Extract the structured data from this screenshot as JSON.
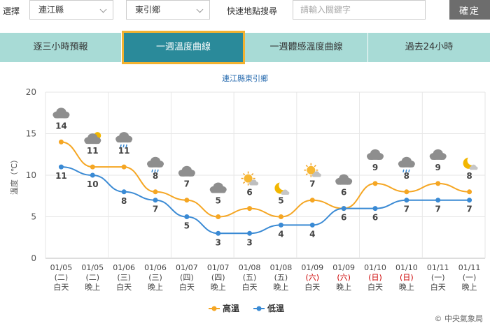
{
  "search": {
    "select_label": "選擇",
    "county": "連江縣",
    "town": "東引鄉",
    "quick_label": "快速地點搜尋",
    "placeholder": "請輸入關鍵字",
    "confirm": "確定"
  },
  "tabs": [
    {
      "label": "逐三小時預報",
      "active": false
    },
    {
      "label": "一週溫度曲線",
      "active": true
    },
    {
      "label": "一週體感溫度曲線",
      "active": false
    },
    {
      "label": "過去24小時",
      "active": false
    }
  ],
  "colors": {
    "high": "#f5a623",
    "low": "#3a8ad4",
    "weekend": "#cc0000"
  },
  "chart_data": {
    "type": "line",
    "title": "連江縣東引鄉",
    "ylabel": "溫度（℃）",
    "ylim": [
      0,
      20
    ],
    "yticks": [
      "0",
      "5",
      "10",
      "15",
      "20"
    ],
    "grid": true,
    "legend_position": "bottom-center",
    "categories": [
      {
        "date": "01/05",
        "weekday": "(二)",
        "period": "白天",
        "weekend": false
      },
      {
        "date": "01/05",
        "weekday": "(二)",
        "period": "晚上",
        "weekend": false
      },
      {
        "date": "01/06",
        "weekday": "(三)",
        "period": "白天",
        "weekend": false
      },
      {
        "date": "01/06",
        "weekday": "(三)",
        "period": "晚上",
        "weekend": false
      },
      {
        "date": "01/07",
        "weekday": "(四)",
        "period": "白天",
        "weekend": false
      },
      {
        "date": "01/07",
        "weekday": "(四)",
        "period": "晚上",
        "weekend": false
      },
      {
        "date": "01/08",
        "weekday": "(五)",
        "period": "白天",
        "weekend": false
      },
      {
        "date": "01/08",
        "weekday": "(五)",
        "period": "晚上",
        "weekend": false
      },
      {
        "date": "01/09",
        "weekday": "(六)",
        "period": "白天",
        "weekend": true
      },
      {
        "date": "01/09",
        "weekday": "(六)",
        "period": "晚上",
        "weekend": true
      },
      {
        "date": "01/10",
        "weekday": "(日)",
        "period": "白天",
        "weekend": true
      },
      {
        "date": "01/10",
        "weekday": "(日)",
        "period": "晚上",
        "weekend": true
      },
      {
        "date": "01/11",
        "weekday": "(一)",
        "period": "白天",
        "weekend": false
      },
      {
        "date": "01/11",
        "weekday": "(一)",
        "period": "晚上",
        "weekend": false
      }
    ],
    "series": [
      {
        "name": "高溫",
        "values": [
          14,
          11,
          11,
          8,
          7,
          5,
          6,
          5,
          7,
          6,
          9,
          8,
          9,
          8
        ]
      },
      {
        "name": "低溫",
        "values": [
          11,
          10,
          8,
          7,
          5,
          3,
          3,
          4,
          4,
          6,
          6,
          7,
          7,
          7
        ]
      }
    ],
    "weather_icons": [
      "cloudy-icon",
      "partly-cloudy-night-icon",
      "rain-cloud-icon",
      "rain-cloud-icon",
      "cloudy-icon",
      "cloudy-icon",
      "partly-sunny-icon",
      "moon-icon",
      "partly-sunny-icon",
      "cloudy-icon",
      "cloudy-icon",
      "rain-cloud-icon",
      "cloudy-icon",
      "moon-icon"
    ]
  },
  "credit": "© 中央氣象局"
}
